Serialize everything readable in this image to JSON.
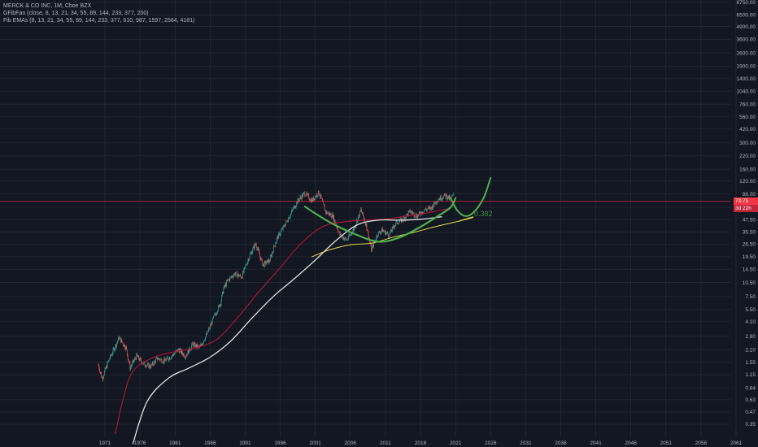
{
  "legend": {
    "line1": "MERCK & CO INC, 1M, Cboe BZX",
    "line2": "GFibFan (close, 8, 13, 21, 34, 55, 89, 144, 233, 377, 200)",
    "line3": "Fib EMAs (8, 13, 21, 34, 55, 89, 144, 233, 377, 610, 987, 1597, 2584, 4181)"
  },
  "price_badges": {
    "last_price": "73.75",
    "countdown": "3d 22h"
  },
  "colors": {
    "background": "#131722",
    "grid": "#2a2e39",
    "axis_text": "#b2b5be",
    "candle_up": "#26a69a",
    "candle_down": "#ef5350",
    "ema_white": "#e0e0e0",
    "ema_red": "#b0173c",
    "ema_yellow": "#e6d84a",
    "fan_green": "#4caf50",
    "price_line": "#f23645",
    "fan_label": "#3d8a3d"
  },
  "chart_data": {
    "type": "candlestick",
    "y_scale": "log",
    "x_ticks": [
      "1971",
      "1976",
      "1981",
      "1986",
      "1991",
      "1996",
      "2001",
      "2006",
      "2011",
      "2016",
      "2021",
      "2026",
      "2031",
      "2036",
      "2041",
      "2046",
      "2051",
      "2056",
      "2061"
    ],
    "y_ticks": [
      0.35,
      0.47,
      0.63,
      0.84,
      1.15,
      1.55,
      2.1,
      2.9,
      4.1,
      5.5,
      7.5,
      10.5,
      14.5,
      19.5,
      26.5,
      35.5,
      47.5,
      64.0,
      88.0,
      120.0,
      160.0,
      220.0,
      300.0,
      420.0,
      560.0,
      760.0,
      1040.0,
      1400.0,
      1900.0,
      2600.0,
      3600.0,
      4900.0,
      6500.0,
      8750.0
    ],
    "y_tick_labels": [
      "0.35",
      "0.47",
      "0.63",
      "0.84",
      "1.15",
      "1.55",
      "2.10",
      "2.90",
      "4.10",
      "5.50",
      "7.50",
      "10.50",
      "14.50",
      "19.50",
      "26.50",
      "35.50",
      "47.50",
      "64.00",
      "88.00",
      "120.00",
      "160.00",
      "220.00",
      "300.00",
      "420.00",
      "560.00",
      "760.00",
      "1040.00",
      "1400.00",
      "1900.00",
      "2600.00",
      "3600.00",
      "4900.00",
      "6500.00",
      "8750.00"
    ],
    "price_path": [
      [
        1970.0,
        1.5
      ],
      [
        1970.6,
        1.05
      ],
      [
        1971.5,
        1.6
      ],
      [
        1972.5,
        2.3
      ],
      [
        1973.0,
        2.8
      ],
      [
        1974.0,
        2.2
      ],
      [
        1974.6,
        1.35
      ],
      [
        1975.5,
        1.8
      ],
      [
        1976.5,
        1.5
      ],
      [
        1977.5,
        1.4
      ],
      [
        1978.5,
        1.7
      ],
      [
        1979.5,
        1.6
      ],
      [
        1980.5,
        1.8
      ],
      [
        1981.5,
        2.1
      ],
      [
        1982.5,
        1.8
      ],
      [
        1983.5,
        2.4
      ],
      [
        1984.5,
        2.2
      ],
      [
        1985.5,
        3.0
      ],
      [
        1986.5,
        4.5
      ],
      [
        1987.5,
        6.5
      ],
      [
        1987.9,
        9.0
      ],
      [
        1988.5,
        11.0
      ],
      [
        1989.5,
        13.0
      ],
      [
        1990.5,
        12.0
      ],
      [
        1991.5,
        19.0
      ],
      [
        1992.5,
        27.0
      ],
      [
        1993.5,
        16.0
      ],
      [
        1994.5,
        18.0
      ],
      [
        1995.5,
        30.0
      ],
      [
        1996.5,
        40.0
      ],
      [
        1997.5,
        55.0
      ],
      [
        1998.5,
        75.0
      ],
      [
        1999.5,
        90.0
      ],
      [
        2000.5,
        75.0
      ],
      [
        2001.5,
        92.0
      ],
      [
        2002.5,
        57.0
      ],
      [
        2003.5,
        52.0
      ],
      [
        2004.5,
        33.0
      ],
      [
        2005.5,
        29.0
      ],
      [
        2006.5,
        38.0
      ],
      [
        2007.5,
        60.0
      ],
      [
        2008.3,
        41.0
      ],
      [
        2009.0,
        23.0
      ],
      [
        2009.8,
        33.0
      ],
      [
        2010.5,
        37.0
      ],
      [
        2011.5,
        33.0
      ],
      [
        2012.5,
        44.0
      ],
      [
        2013.5,
        48.0
      ],
      [
        2014.5,
        58.0
      ],
      [
        2015.5,
        52.0
      ],
      [
        2016.5,
        60.0
      ],
      [
        2017.5,
        63.0
      ],
      [
        2018.5,
        78.0
      ],
      [
        2019.5,
        85.0
      ],
      [
        2020.3,
        78.0
      ],
      [
        2020.7,
        86.0
      ]
    ],
    "ema_red": [
      [
        1972.5,
        0.28
      ],
      [
        1973.5,
        0.6
      ],
      [
        1975,
        1.25
      ],
      [
        1978,
        1.75
      ],
      [
        1981,
        2.0
      ],
      [
        1984,
        2.2
      ],
      [
        1987,
        2.7
      ],
      [
        1990,
        4.6
      ],
      [
        1993,
        8.5
      ],
      [
        1996,
        15
      ],
      [
        1999,
        27
      ],
      [
        2002,
        40
      ],
      [
        2005,
        45
      ],
      [
        2008,
        47
      ],
      [
        2011,
        48
      ],
      [
        2014,
        52
      ],
      [
        2017,
        56
      ],
      [
        2020,
        62
      ]
    ],
    "ema_white": [
      [
        1975,
        0.22
      ],
      [
        1977,
        0.6
      ],
      [
        1980,
        1.05
      ],
      [
        1983,
        1.35
      ],
      [
        1986,
        1.75
      ],
      [
        1989,
        2.6
      ],
      [
        1992,
        4.5
      ],
      [
        1995,
        7.5
      ],
      [
        1998,
        11.5
      ],
      [
        2001,
        18
      ],
      [
        2004,
        29
      ],
      [
        2007,
        42
      ],
      [
        2010,
        47
      ],
      [
        2013,
        47
      ],
      [
        2016,
        48
      ],
      [
        2019,
        51
      ]
    ],
    "ema_yellow": [
      [
        2000.5,
        19.5
      ],
      [
        2003,
        23
      ],
      [
        2006,
        26
      ],
      [
        2009,
        27
      ],
      [
        2012,
        31
      ],
      [
        2015,
        35
      ],
      [
        2018,
        40
      ],
      [
        2021,
        45
      ],
      [
        2023.5,
        50
      ]
    ],
    "fib_fan_curves": [
      [
        [
          1999.5,
          65
        ],
        [
          2003,
          45
        ],
        [
          2006.5,
          34
        ],
        [
          2010,
          28
        ],
        [
          2013,
          31
        ],
        [
          2016,
          40
        ],
        [
          2018.5,
          52
        ],
        [
          2020.3,
          64
        ],
        [
          2021,
          80
        ]
      ],
      [
        [
          2020.3,
          80
        ],
        [
          2021.2,
          60
        ],
        [
          2022.3,
          52
        ],
        [
          2023.5,
          56
        ],
        [
          2025,
          80
        ],
        [
          2026,
          130
        ]
      ],
      [
        [
          2021.5,
          46
        ],
        [
          2023.5,
          51
        ]
      ]
    ],
    "fan_label": "0.382",
    "fan_label_point": [
      2022.5,
      55
    ]
  }
}
